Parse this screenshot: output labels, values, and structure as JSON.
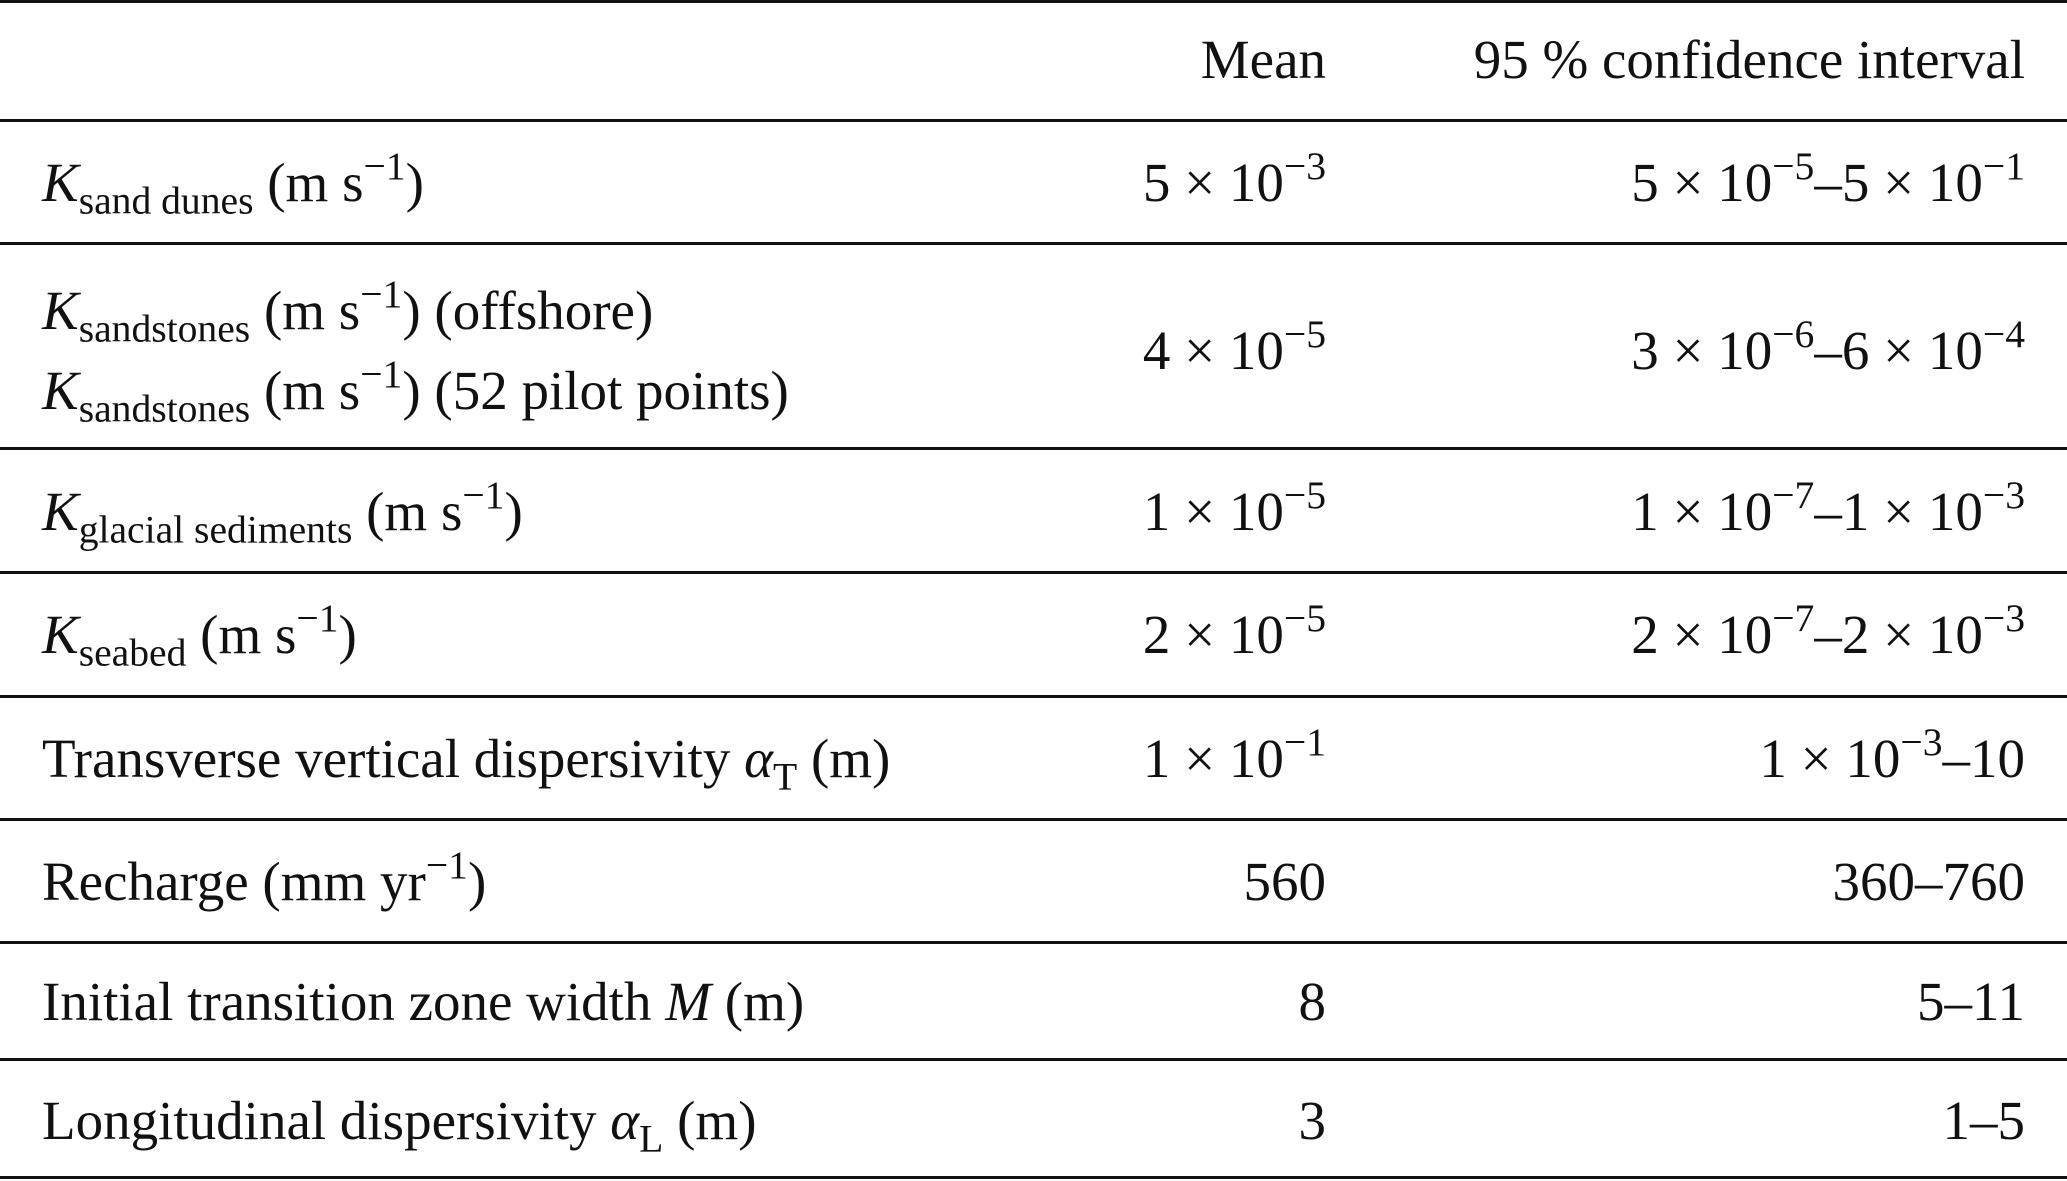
{
  "header": {
    "col_param": "",
    "col_mean": "Mean",
    "col_ci": "95 % confidence interval"
  },
  "rows": [
    {
      "param_lines": [
        {
          "sym": "K",
          "sub": "sand dunes",
          "unit": " (m s",
          "exp": "−1",
          "tail": ")"
        }
      ],
      "mean": {
        "coef": "5 × 10",
        "exp": "−3"
      },
      "ci": {
        "lo_coef": "5 × 10",
        "lo_exp": "−5",
        "sep": "–",
        "hi_coef": "5 × 10",
        "hi_exp": "−1"
      }
    },
    {
      "param_lines": [
        {
          "sym": "K",
          "sub": "sandstones",
          "unit": " (m s",
          "exp": "−1",
          "tail": ") (offshore)"
        },
        {
          "sym": "K",
          "sub": "sandstones",
          "unit": " (m s",
          "exp": "−1",
          "tail": ") (52 pilot points)"
        }
      ],
      "mean": {
        "coef": "4 × 10",
        "exp": "−5"
      },
      "ci": {
        "lo_coef": "3 × 10",
        "lo_exp": "−6",
        "sep": "–",
        "hi_coef": "6 × 10",
        "hi_exp": "−4"
      }
    },
    {
      "param_lines": [
        {
          "sym": "K",
          "sub": "glacial sediments",
          "unit": " (m s",
          "exp": "−1",
          "tail": ")"
        }
      ],
      "mean": {
        "coef": "1 × 10",
        "exp": "−5"
      },
      "ci": {
        "lo_coef": "1 × 10",
        "lo_exp": "−7",
        "sep": "–",
        "hi_coef": "1 × 10",
        "hi_exp": "−3"
      }
    },
    {
      "param_lines": [
        {
          "sym": "K",
          "sub": "seabed",
          "unit": " (m s",
          "exp": "−1",
          "tail": ")"
        }
      ],
      "mean": {
        "coef": "2 × 10",
        "exp": "−5"
      },
      "ci": {
        "lo_coef": "2 × 10",
        "lo_exp": "−7",
        "sep": "–",
        "hi_coef": "2 × 10",
        "hi_exp": "−3"
      }
    },
    {
      "param_text": "Transverse vertical dispersivity ",
      "param_sym": "α",
      "param_sub": "T",
      "param_tail": " (m)",
      "mean": {
        "coef": "1 × 10",
        "exp": "−1"
      },
      "ci_text": {
        "lo_coef": "1 × 10",
        "lo_exp": "−3",
        "rest": "–10"
      }
    },
    {
      "param_text": "Recharge (mm yr",
      "param_exp": "−1",
      "param_tail": ")",
      "mean_text": "560",
      "ci_plain": "360–760"
    },
    {
      "param_text": "Initial transition zone width ",
      "param_sym": "M",
      "param_tail": " (m)",
      "mean_text": "8",
      "ci_plain": "5–11"
    },
    {
      "param_text": "Longitudinal dispersivity ",
      "param_sym": "α",
      "param_sub": "L",
      "param_tail": " (m)",
      "mean_text": "3",
      "ci_plain": "1–5"
    }
  ]
}
